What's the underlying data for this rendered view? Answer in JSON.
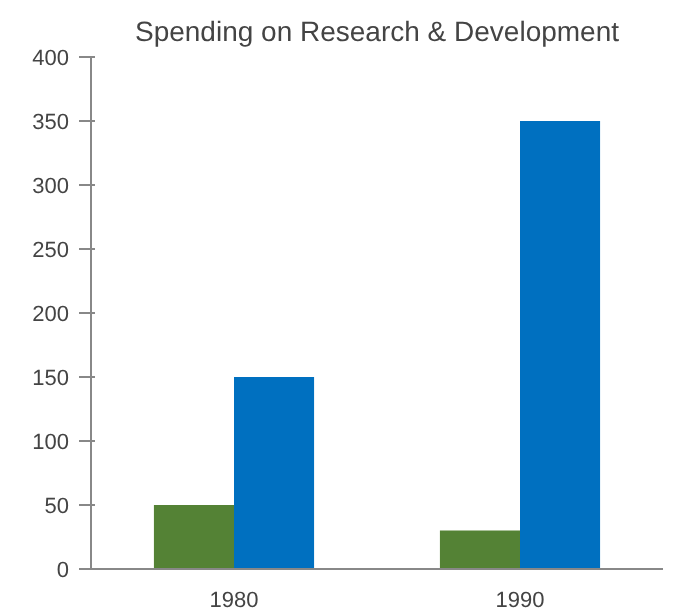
{
  "chart_data": {
    "type": "bar",
    "title": "Spending on Research & Development",
    "categories": [
      "1980",
      "1990"
    ],
    "series": [
      {
        "color": "#548235",
        "values": [
          50,
          30
        ]
      },
      {
        "color": "#0070c0",
        "values": [
          150,
          350
        ]
      }
    ],
    "ylim": [
      0,
      400
    ],
    "yticks": [
      0,
      50,
      100,
      150,
      200,
      250,
      300,
      350,
      400
    ],
    "grid": false
  }
}
